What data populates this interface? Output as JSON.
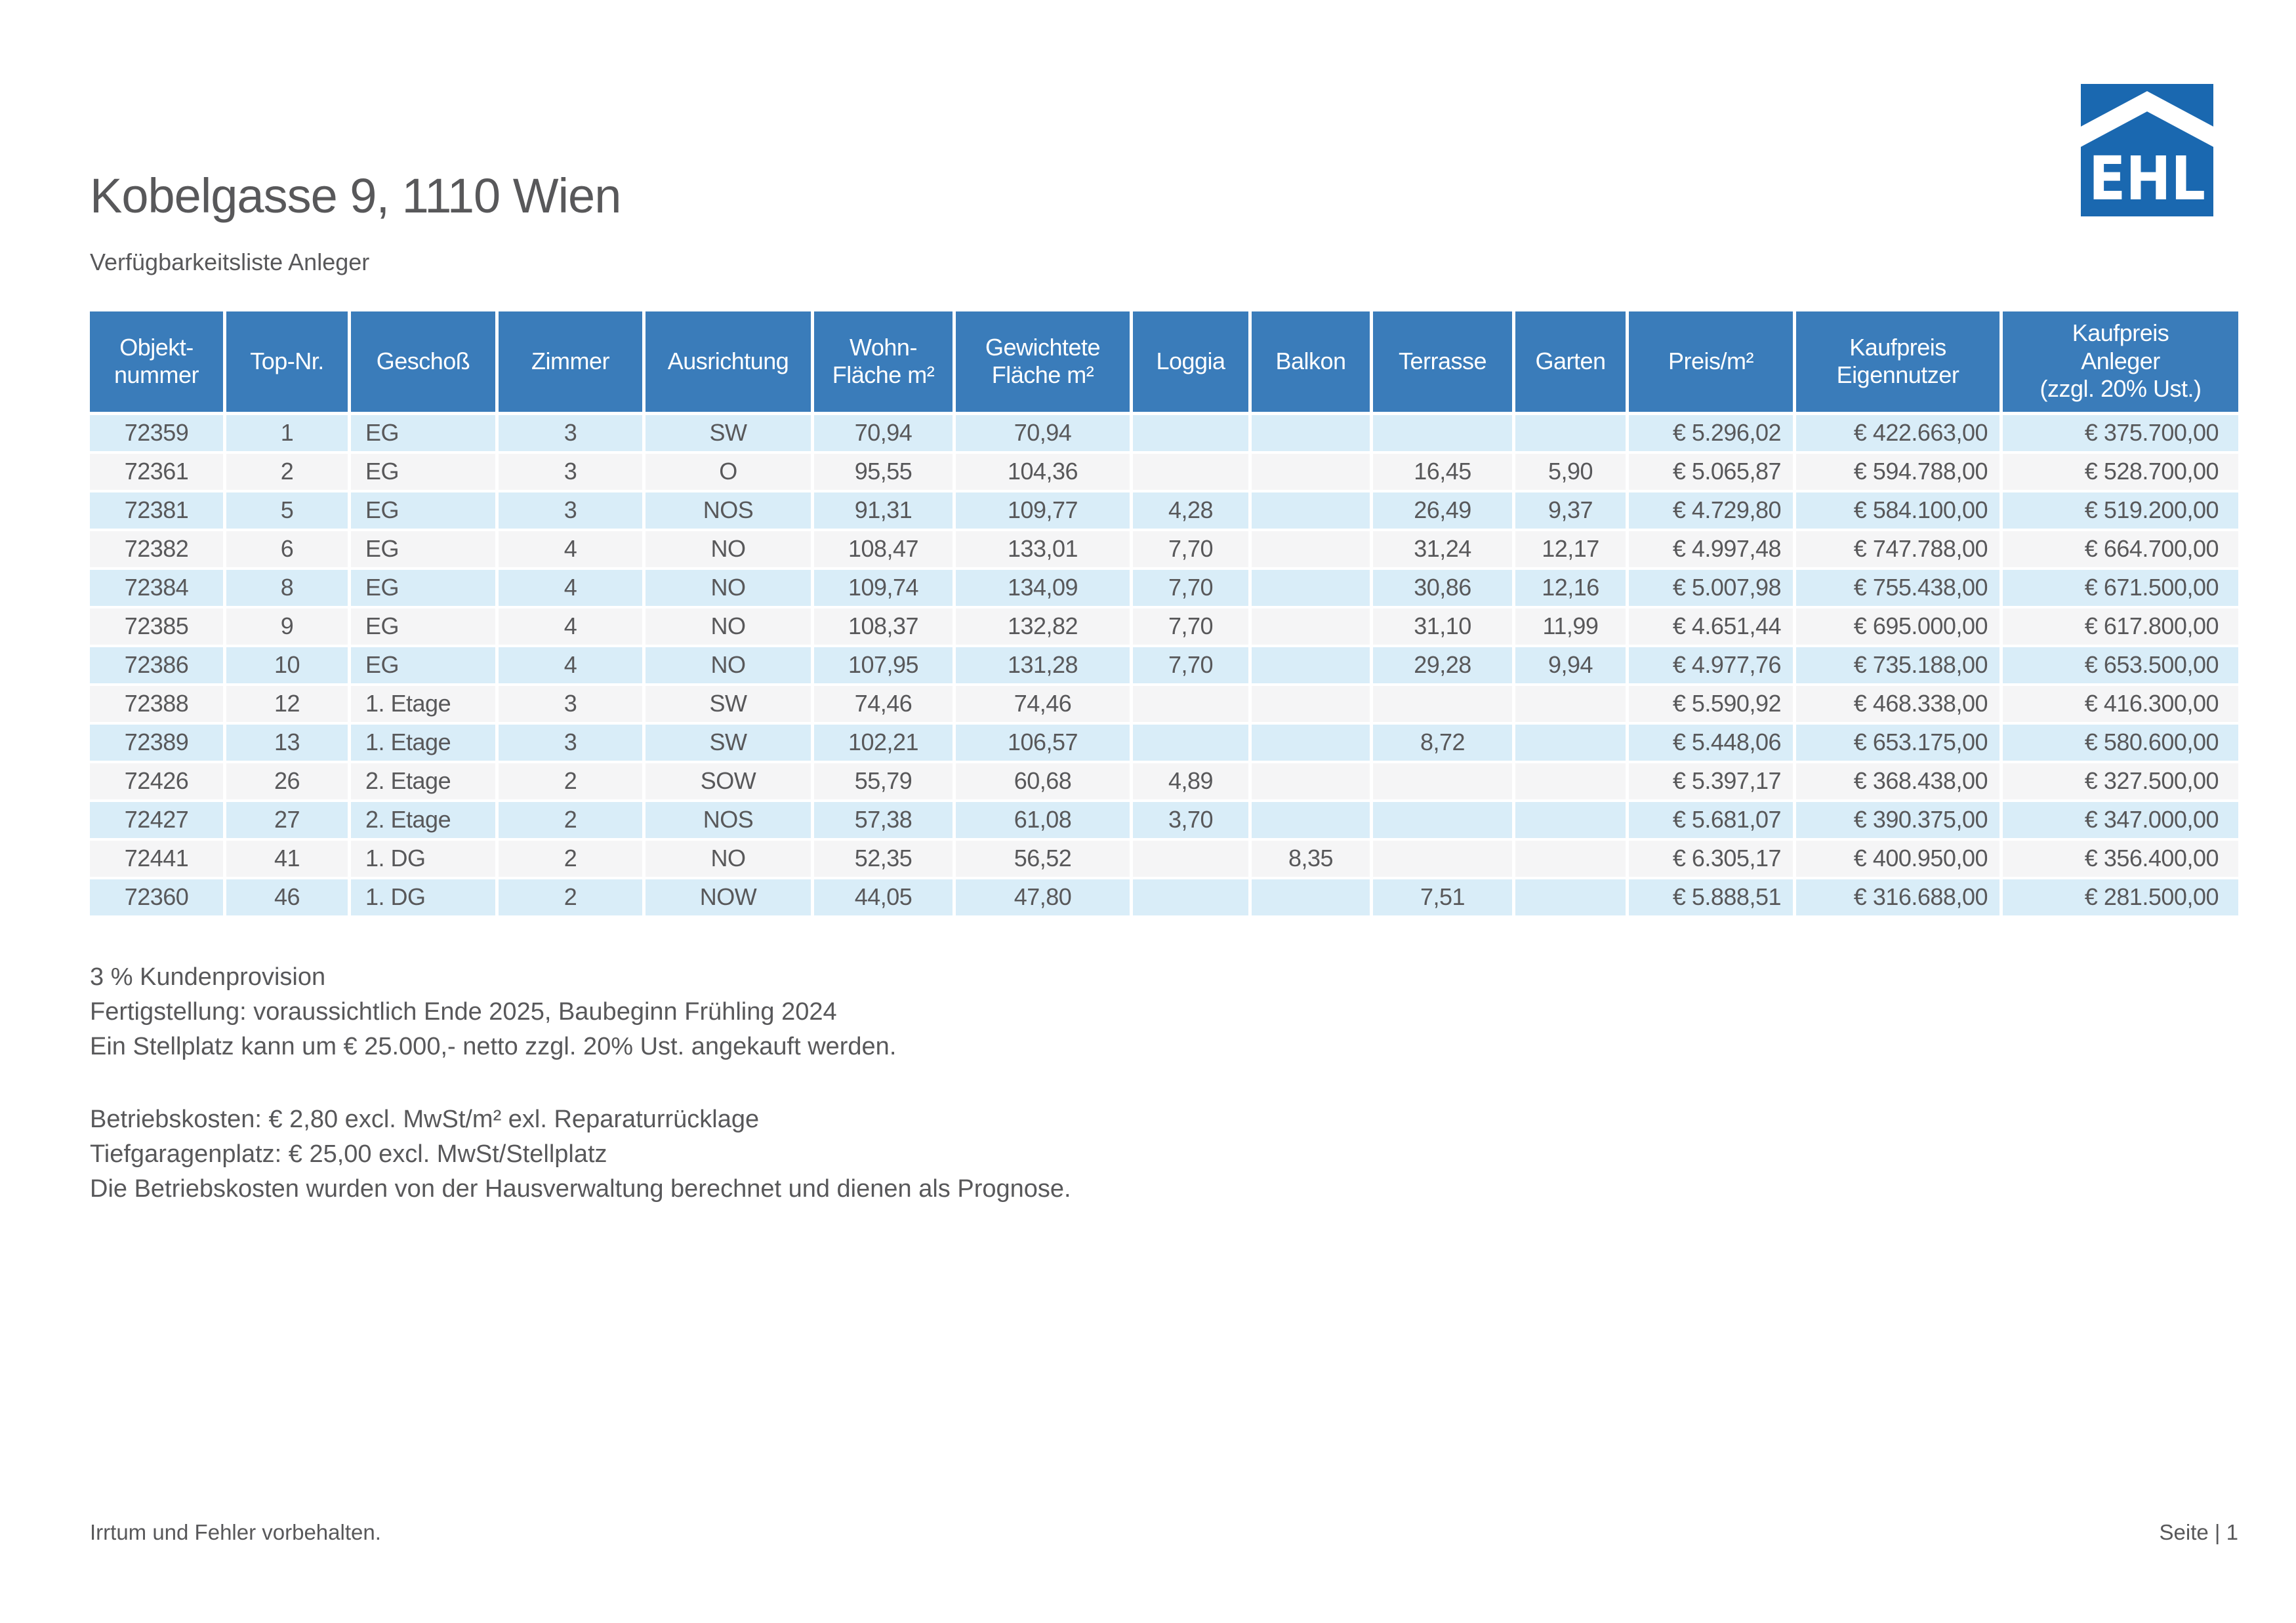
{
  "page": {
    "title": "Kobelgasse 9, 1110 Wien",
    "subtitle": "Verfügbarkeitsliste Anleger",
    "footer_left": "Irrtum und Fehler vorbehalten.",
    "footer_right": "Seite | 1"
  },
  "logo": {
    "text": "EHL"
  },
  "colors": {
    "header_blue": "#3a7cba",
    "row_blue": "#d9edf8",
    "row_gray": "#f5f5f6",
    "logo_blue": "#1a68b0",
    "text_gray": "#58585a"
  },
  "table": {
    "columns": [
      {
        "key": "objektnummer",
        "label": "Objekt-\nnummer"
      },
      {
        "key": "top_nr",
        "label": "Top-Nr."
      },
      {
        "key": "geschoss",
        "label": "Geschoß"
      },
      {
        "key": "zimmer",
        "label": "Zimmer"
      },
      {
        "key": "ausrichtung",
        "label": "Ausrichtung"
      },
      {
        "key": "wohnflaeche",
        "label": "Wohn-\nFläche m²"
      },
      {
        "key": "gewichtete_flaeche",
        "label": "Gewichtete\nFläche m²"
      },
      {
        "key": "loggia",
        "label": "Loggia"
      },
      {
        "key": "balkon",
        "label": "Balkon"
      },
      {
        "key": "terrasse",
        "label": "Terrasse"
      },
      {
        "key": "garten",
        "label": "Garten"
      },
      {
        "key": "preis_m2",
        "label": "Preis/m²"
      },
      {
        "key": "kaufpreis_eigennutzer",
        "label": "Kaufpreis\nEigennutzer"
      },
      {
        "key": "kaufpreis_anleger",
        "label": "Kaufpreis\nAnleger\n(zzgl. 20% Ust.)"
      }
    ],
    "rows": [
      [
        "72359",
        "1",
        "EG",
        "3",
        "SW",
        "70,94",
        "70,94",
        "",
        "",
        "",
        "",
        "€ 5.296,02",
        "€ 422.663,00",
        "€ 375.700,00"
      ],
      [
        "72361",
        "2",
        "EG",
        "3",
        "O",
        "95,55",
        "104,36",
        "",
        "",
        "16,45",
        "5,90",
        "€ 5.065,87",
        "€ 594.788,00",
        "€ 528.700,00"
      ],
      [
        "72381",
        "5",
        "EG",
        "3",
        "NOS",
        "91,31",
        "109,77",
        "4,28",
        "",
        "26,49",
        "9,37",
        "€ 4.729,80",
        "€ 584.100,00",
        "€ 519.200,00"
      ],
      [
        "72382",
        "6",
        "EG",
        "4",
        "NO",
        "108,47",
        "133,01",
        "7,70",
        "",
        "31,24",
        "12,17",
        "€ 4.997,48",
        "€ 747.788,00",
        "€ 664.700,00"
      ],
      [
        "72384",
        "8",
        "EG",
        "4",
        "NO",
        "109,74",
        "134,09",
        "7,70",
        "",
        "30,86",
        "12,16",
        "€ 5.007,98",
        "€ 755.438,00",
        "€ 671.500,00"
      ],
      [
        "72385",
        "9",
        "EG",
        "4",
        "NO",
        "108,37",
        "132,82",
        "7,70",
        "",
        "31,10",
        "11,99",
        "€ 4.651,44",
        "€ 695.000,00",
        "€ 617.800,00"
      ],
      [
        "72386",
        "10",
        "EG",
        "4",
        "NO",
        "107,95",
        "131,28",
        "7,70",
        "",
        "29,28",
        "9,94",
        "€ 4.977,76",
        "€ 735.188,00",
        "€ 653.500,00"
      ],
      [
        "72388",
        "12",
        "1. Etage",
        "3",
        "SW",
        "74,46",
        "74,46",
        "",
        "",
        "",
        "",
        "€ 5.590,92",
        "€ 468.338,00",
        "€ 416.300,00"
      ],
      [
        "72389",
        "13",
        "1. Etage",
        "3",
        "SW",
        "102,21",
        "106,57",
        "",
        "",
        "8,72",
        "",
        "€ 5.448,06",
        "€ 653.175,00",
        "€ 580.600,00"
      ],
      [
        "72426",
        "26",
        "2. Etage",
        "2",
        "SOW",
        "55,79",
        "60,68",
        "4,89",
        "",
        "",
        "",
        "€ 5.397,17",
        "€ 368.438,00",
        "€ 327.500,00"
      ],
      [
        "72427",
        "27",
        "2. Etage",
        "2",
        "NOS",
        "57,38",
        "61,08",
        "3,70",
        "",
        "",
        "",
        "€ 5.681,07",
        "€ 390.375,00",
        "€ 347.000,00"
      ],
      [
        "72441",
        "41",
        "1. DG",
        "2",
        "NO",
        "52,35",
        "56,52",
        "",
        "8,35",
        "",
        "",
        "€ 6.305,17",
        "€ 400.950,00",
        "€ 356.400,00"
      ],
      [
        "72360",
        "46",
        "1. DG",
        "2",
        "NOW",
        "44,05",
        "47,80",
        "",
        "",
        "7,51",
        "",
        "€ 5.888,51",
        "€ 316.688,00",
        "€ 281.500,00"
      ]
    ]
  },
  "notes_block1": [
    "3 % Kundenprovision",
    "Fertigstellung: voraussichtlich Ende 2025, Baubeginn Frühling 2024",
    "Ein Stellplatz kann um € 25.000,- netto zzgl. 20% Ust. angekauft werden."
  ],
  "notes_block2": [
    "Betriebskosten: € 2,80 excl. MwSt/m² exl. Reparaturrücklage",
    "Tiefgaragenplatz: € 25,00 excl. MwSt/Stellplatz",
    "Die Betriebskosten wurden von der Hausverwaltung berechnet und dienen als Prognose."
  ]
}
